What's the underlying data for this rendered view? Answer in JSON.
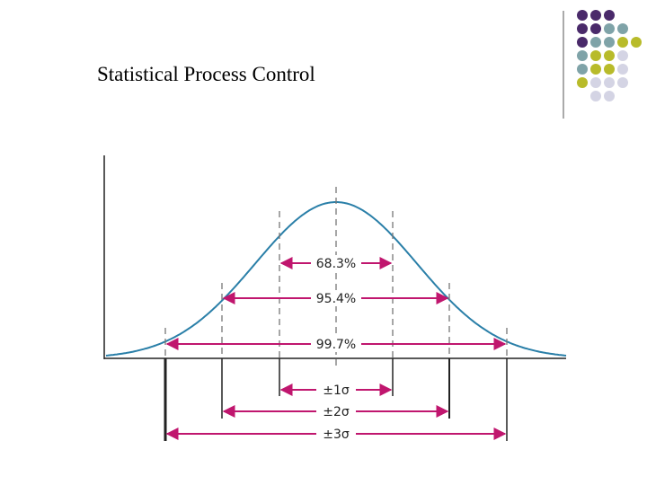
{
  "title": "Statistical Process Control",
  "diagram": {
    "coverage_labels": [
      "68.3%",
      "95.4%",
      "99.7%"
    ],
    "sigma_labels": [
      "±1σ",
      "±2σ",
      "±3σ"
    ]
  }
}
